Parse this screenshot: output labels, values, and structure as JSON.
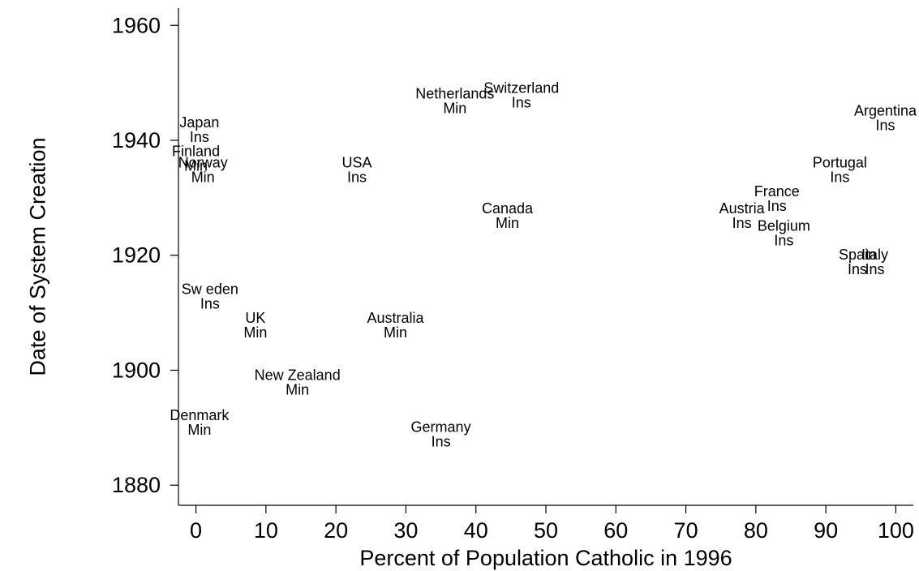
{
  "chart_data": {
    "type": "scatter",
    "title": "",
    "xlabel": "Percent of Population Catholic in 1996",
    "ylabel": "Date of System Creation",
    "xlim": [
      -2.5,
      102.5
    ],
    "ylim": [
      1876.5,
      1963
    ],
    "xticks": [
      0,
      10,
      20,
      30,
      40,
      50,
      60,
      70,
      80,
      90,
      100
    ],
    "yticks": [
      1880,
      1900,
      1920,
      1940,
      1960
    ],
    "grid": false,
    "marker": "none",
    "points": [
      {
        "country": "Japan",
        "type": "Ins",
        "x": 0.5,
        "y": 1942
      },
      {
        "country": "Finland",
        "type": "Min",
        "x": 0,
        "y": 1937
      },
      {
        "country": "Norway",
        "type": "Min",
        "x": 1,
        "y": 1935
      },
      {
        "country": "USA",
        "type": "Ins",
        "x": 23,
        "y": 1935
      },
      {
        "country": "Netherlands",
        "type": "Min",
        "x": 37,
        "y": 1947
      },
      {
        "country": "Switzerland",
        "type": "Ins",
        "x": 46.5,
        "y": 1948
      },
      {
        "country": "Canada",
        "type": "Min",
        "x": 44.5,
        "y": 1927
      },
      {
        "country": "Argentina",
        "type": "Ins",
        "x": 98.5,
        "y": 1944
      },
      {
        "country": "Portugal",
        "type": "Ins",
        "x": 92,
        "y": 1935
      },
      {
        "country": "France",
        "type": "Ins",
        "x": 83,
        "y": 1930
      },
      {
        "country": "Austria",
        "type": "Ins",
        "x": 78,
        "y": 1927
      },
      {
        "country": "Belgium",
        "type": "Ins",
        "x": 84,
        "y": 1924
      },
      {
        "country": "Spain",
        "type": "Ins",
        "x": 94.5,
        "y": 1919
      },
      {
        "country": "Italy",
        "type": "Ins",
        "x": 97,
        "y": 1919
      },
      {
        "country": "Sw eden",
        "type": "Ins",
        "x": 2,
        "y": 1913
      },
      {
        "country": "UK",
        "type": "Min",
        "x": 8.5,
        "y": 1908
      },
      {
        "country": "Australia",
        "type": "Min",
        "x": 28.5,
        "y": 1908
      },
      {
        "country": "New  Zealand",
        "type": "Min",
        "x": 14.5,
        "y": 1898
      },
      {
        "country": "Denmark",
        "type": "Min",
        "x": 0.5,
        "y": 1891
      },
      {
        "country": "Germany",
        "type": "Ins",
        "x": 35,
        "y": 1889
      }
    ]
  }
}
